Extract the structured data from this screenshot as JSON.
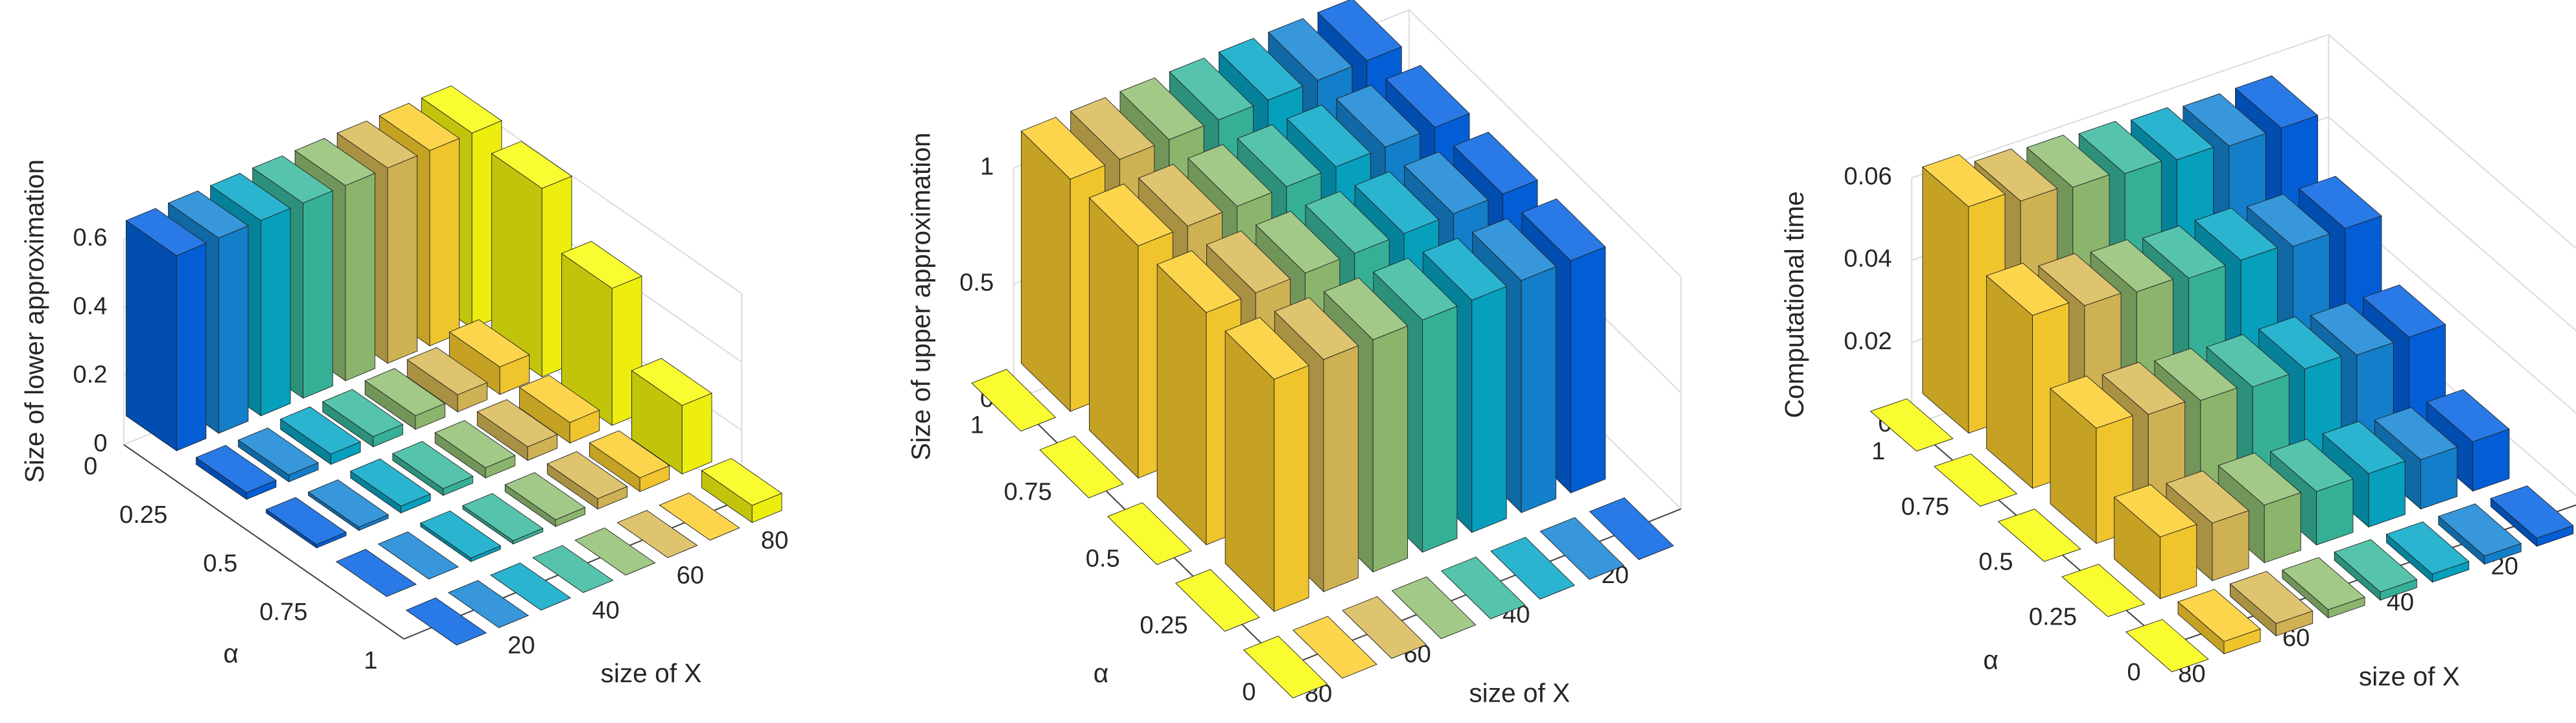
{
  "chart_data": [
    {
      "type": "bar3d",
      "zlabel": "Size of lower approximation",
      "xlabel": "size of X",
      "ylabel": "α",
      "x": [
        10,
        20,
        30,
        40,
        50,
        60,
        70,
        80
      ],
      "y": [
        0,
        0.25,
        0.5,
        0.75,
        1
      ],
      "values": [
        [
          0.57,
          0.57,
          0.57,
          0.57,
          0.57,
          0.57,
          0.57,
          0.57
        ],
        [
          0.02,
          0.02,
          0.03,
          0.03,
          0.04,
          0.05,
          0.08,
          0.55
        ],
        [
          0.01,
          0.01,
          0.02,
          0.02,
          0.03,
          0.04,
          0.06,
          0.4
        ],
        [
          0,
          0,
          0.01,
          0.01,
          0.02,
          0.03,
          0.04,
          0.2
        ],
        [
          0,
          0,
          0,
          0,
          0,
          0,
          0,
          0.05
        ]
      ],
      "xlim": [
        0,
        80
      ],
      "ylim": [
        0,
        1
      ],
      "zlim": [
        0,
        0.7
      ],
      "xticks": [
        20,
        40,
        60,
        80
      ],
      "yticks": [
        0,
        0.25,
        0.5,
        0.75,
        1
      ],
      "zticks": [
        0,
        0.2,
        0.4,
        0.6
      ],
      "grid": true,
      "color_by": "x",
      "colormap": [
        "#352a87",
        "#0363e1",
        "#1485d4",
        "#06a7c6",
        "#38b99e",
        "#92bf73",
        "#d9ba56",
        "#fcce2e",
        "#f9fb0e"
      ]
    },
    {
      "type": "bar3d",
      "zlabel": "Size of upper approximation",
      "xlabel": "size of X",
      "ylabel": "α",
      "x": [
        10,
        20,
        30,
        40,
        50,
        60,
        70,
        80
      ],
      "y": [
        0,
        0.25,
        0.5,
        0.75,
        1
      ],
      "values": [
        [
          0,
          0,
          0,
          0,
          0,
          0,
          0,
          0
        ],
        [
          1,
          1,
          1,
          1,
          1,
          1,
          1,
          0
        ],
        [
          1,
          1,
          1,
          1,
          1,
          1,
          1,
          0
        ],
        [
          1,
          1,
          1,
          1,
          1,
          1,
          1,
          0
        ],
        [
          1,
          1,
          1,
          1,
          1,
          1,
          1,
          0
        ]
      ],
      "xlim": [
        0,
        80
      ],
      "ylim": [
        0,
        1
      ],
      "zlim": [
        0,
        1
      ],
      "xticks": [
        20,
        40,
        60,
        80
      ],
      "yticks": [
        0,
        0.25,
        0.5,
        0.75,
        1
      ],
      "zticks": [
        0,
        0.5,
        1
      ],
      "grid": true,
      "color_by": "x",
      "colormap": [
        "#352a87",
        "#0363e1",
        "#1485d4",
        "#06a7c6",
        "#38b99e",
        "#92bf73",
        "#d9ba56",
        "#fcce2e",
        "#f9fb0e"
      ]
    },
    {
      "type": "bar3d",
      "zlabel": "Computational time",
      "xlabel": "size of X",
      "ylabel": "α",
      "x": [
        10,
        20,
        30,
        40,
        50,
        60,
        70,
        80
      ],
      "y": [
        0,
        0.25,
        0.5,
        0.75,
        1
      ],
      "values": [
        [
          0.002,
          0.002,
          0.002,
          0.002,
          0.002,
          0.003,
          0.003,
          0
        ],
        [
          0.012,
          0.012,
          0.013,
          0.013,
          0.014,
          0.014,
          0.015,
          0
        ],
        [
          0.024,
          0.024,
          0.025,
          0.025,
          0.026,
          0.027,
          0.028,
          0
        ],
        [
          0.037,
          0.037,
          0.038,
          0.038,
          0.039,
          0.04,
          0.042,
          0
        ],
        [
          0.048,
          0.048,
          0.049,
          0.05,
          0.051,
          0.052,
          0.055,
          0
        ]
      ],
      "xlim": [
        0,
        80
      ],
      "ylim": [
        0,
        1
      ],
      "zlim": [
        0,
        0.06
      ],
      "xticks": [
        20,
        40,
        60,
        80
      ],
      "yticks": [
        0,
        0.25,
        0.5,
        0.75,
        1
      ],
      "zticks": [
        0,
        0.02,
        0.04,
        0.06
      ],
      "grid": true,
      "color_by": "x",
      "colormap": [
        "#352a87",
        "#0363e1",
        "#1485d4",
        "#06a7c6",
        "#38b99e",
        "#92bf73",
        "#d9ba56",
        "#fcce2e",
        "#f9fb0e"
      ]
    }
  ]
}
